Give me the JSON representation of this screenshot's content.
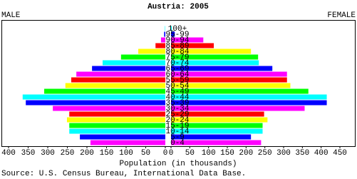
{
  "chart_data": {
    "type": "pyramid",
    "title": "Austria: 2005",
    "categories": [
      "0-4",
      "5-9",
      "10-14",
      "15-19",
      "20-24",
      "25-29",
      "30-34",
      "35-39",
      "40-44",
      "45-49",
      "50-54",
      "55-59",
      "60-64",
      "65-69",
      "70-74",
      "75-79",
      "80-84",
      "85-89",
      "90-94",
      "95-99",
      "100+"
    ],
    "colors": [
      "#ff00ff",
      "#0000ff",
      "#00ffff",
      "#00ff00",
      "#ffff00",
      "#ff0000"
    ],
    "series": [
      {
        "name": "MALE",
        "values": [
          191,
          218,
          245,
          245,
          251,
          245,
          287,
          356,
          364,
          309,
          255,
          240,
          227,
          187,
          160,
          113,
          69,
          25,
          11,
          3,
          1
        ]
      },
      {
        "name": "FEMALE",
        "values": [
          240,
          213,
          244,
          244,
          257,
          248,
          356,
          415,
          415,
          366,
          318,
          309,
          309,
          270,
          234,
          232,
          213,
          114,
          86,
          10,
          2
        ]
      }
    ],
    "xlim": [
      0,
      400
    ],
    "xticks": [
      0,
      50,
      100,
      150,
      200,
      250,
      300,
      350,
      400
    ],
    "x2lim": [
      0,
      450
    ],
    "x2ticks": [
      0,
      50,
      100,
      150,
      200,
      250,
      300,
      350,
      400,
      450
    ],
    "xlabel": "Population (in thousands)",
    "source": "Source: U.S. Census Bureau, International Data Base."
  }
}
